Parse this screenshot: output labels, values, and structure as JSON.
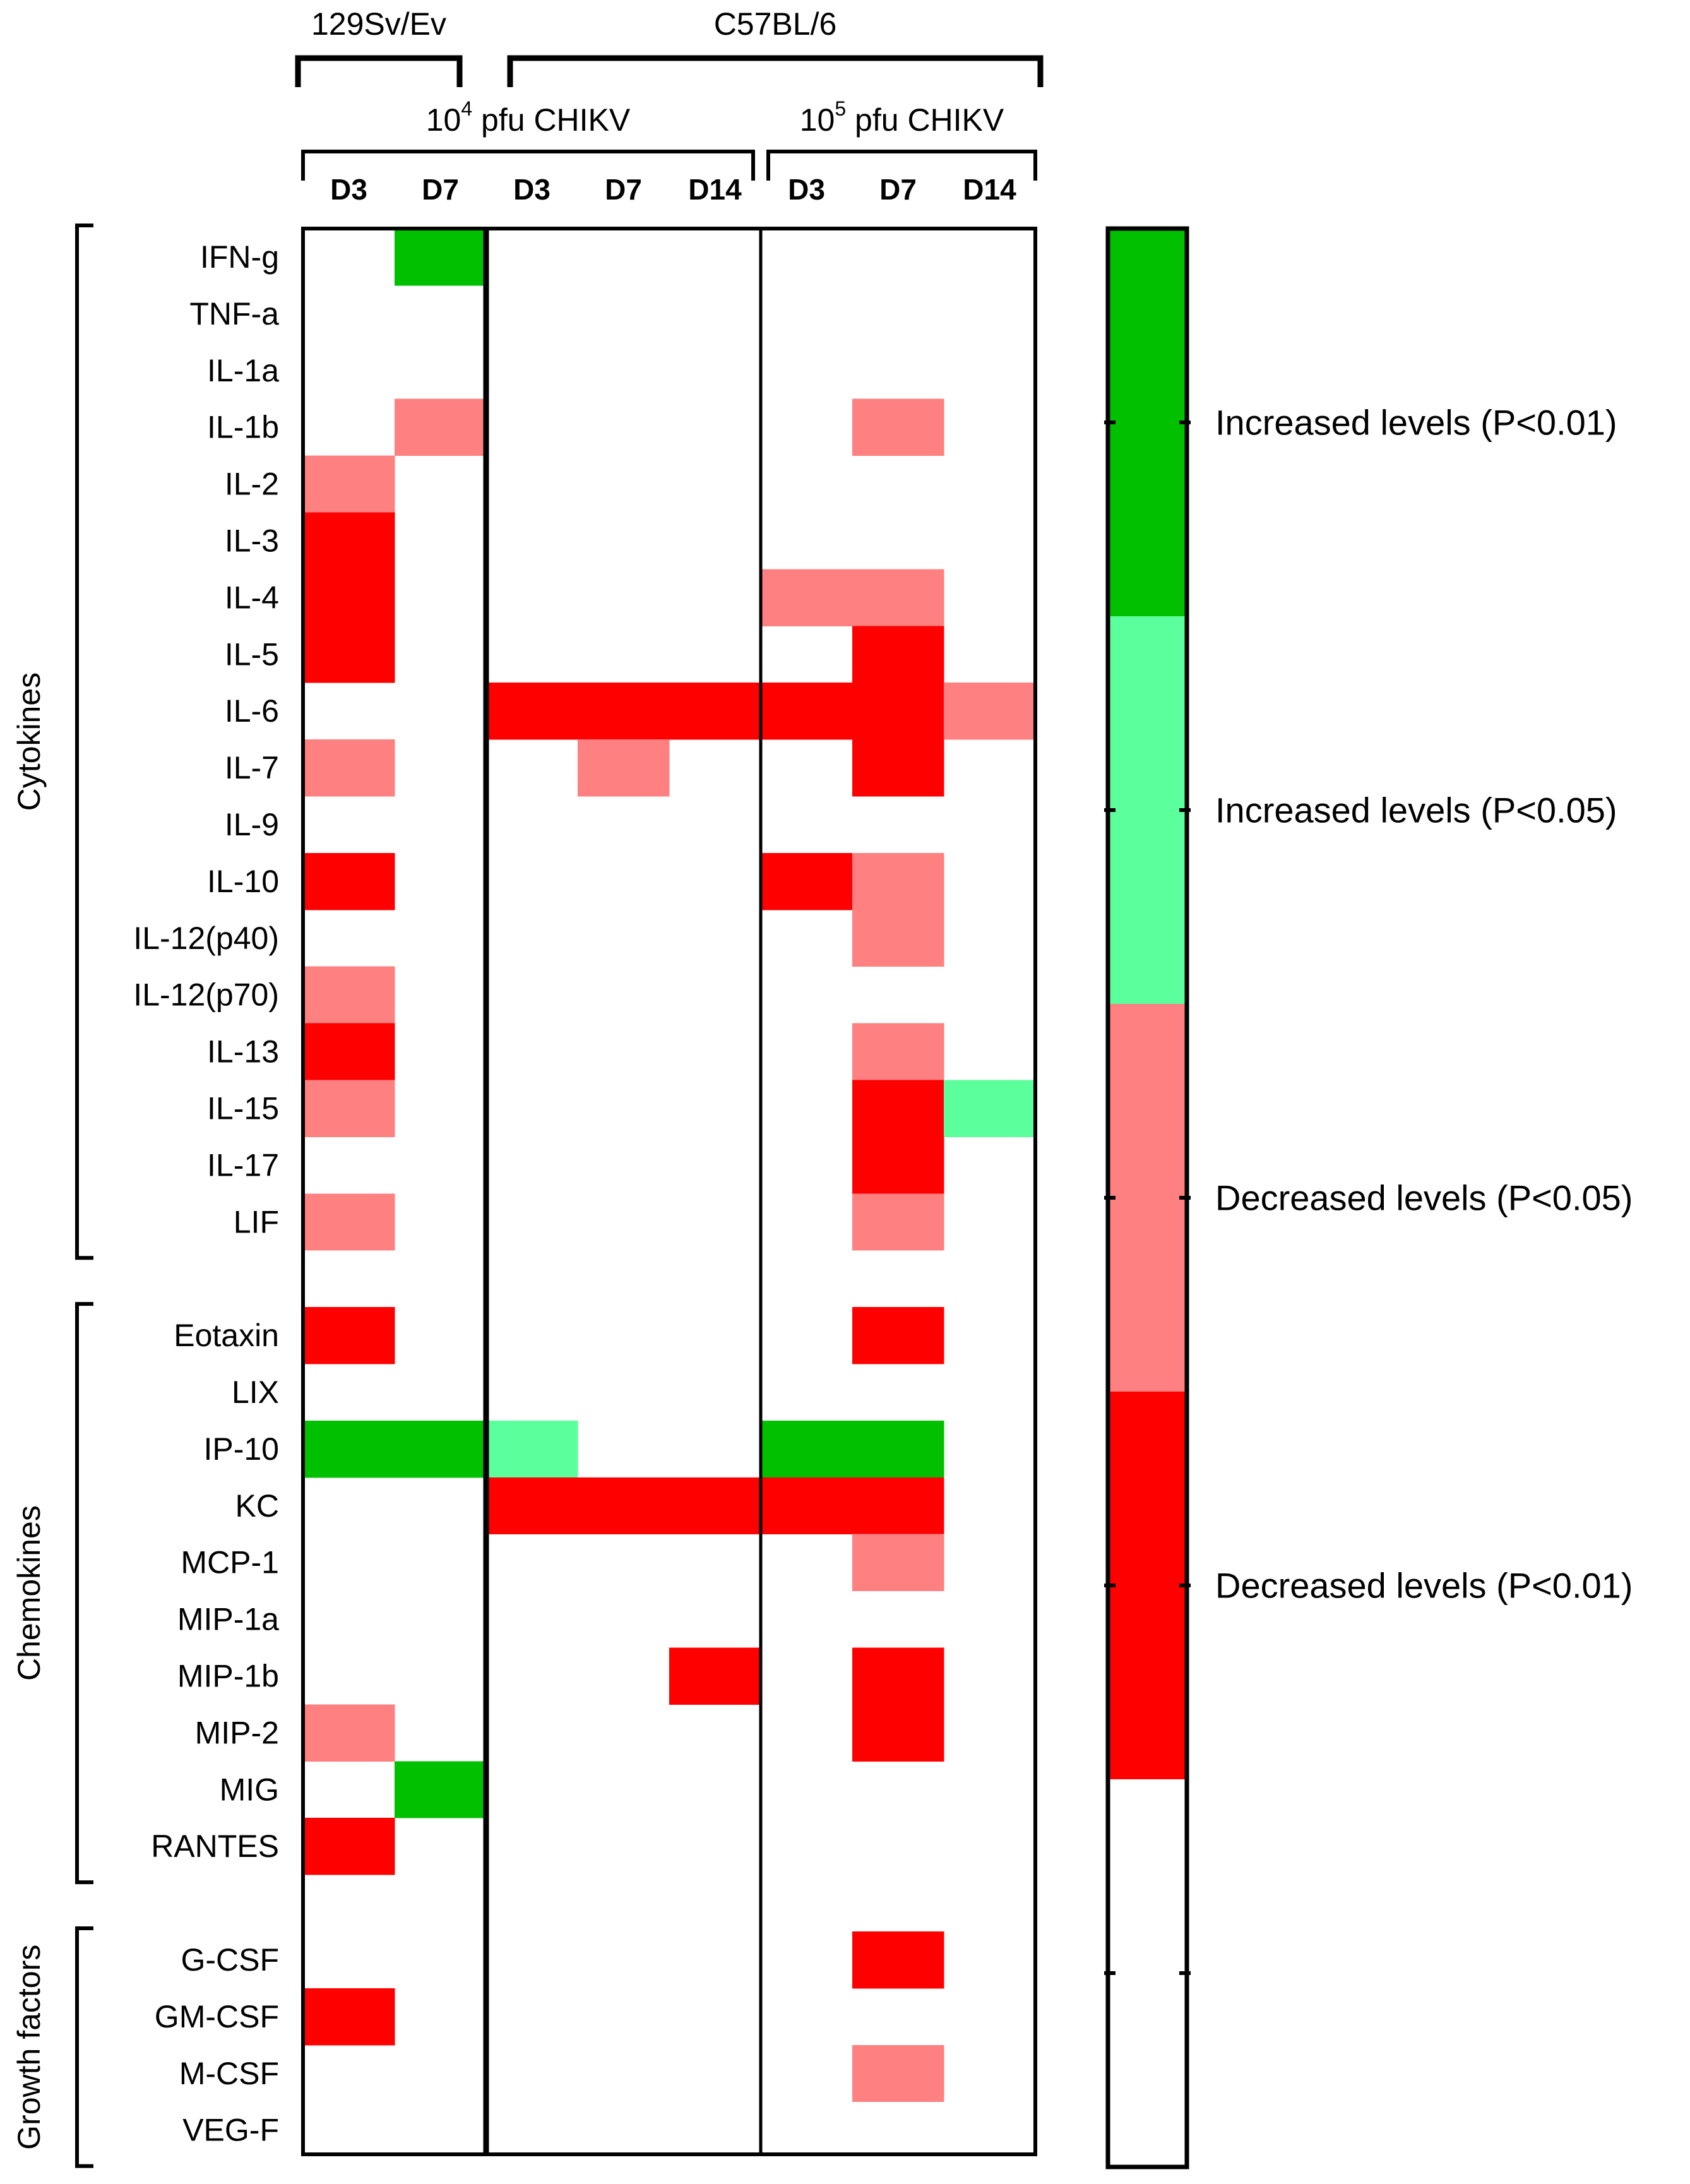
{
  "chart_data": {
    "type": "heatmap",
    "strains": [
      {
        "label": "129Sv/Ev",
        "col_start": 0,
        "col_end": 1
      },
      {
        "label": "C57BL/6",
        "col_start": 2,
        "col_end": 7
      }
    ],
    "doses": [
      {
        "base": "10",
        "exp": "4",
        "rest": " pfu CHIKV",
        "col_start": 0,
        "col_end": 4
      },
      {
        "base": "10",
        "exp": "5",
        "rest": " pfu CHIKV",
        "col_start": 5,
        "col_end": 7
      }
    ],
    "columns": [
      "D3",
      "D7",
      "D3",
      "D7",
      "D14",
      "D3",
      "D7",
      "D14"
    ],
    "groups": [
      {
        "label": "Cytokines",
        "rows": [
          "IFN-g",
          "TNF-a",
          "IL-1a",
          "IL-1b",
          "IL-2",
          "IL-3",
          "IL-4",
          "IL-5",
          "IL-6",
          "IL-7",
          "IL-9",
          "IL-10",
          "IL-12(p40)",
          "IL-12(p70)",
          "IL-13",
          "IL-15",
          "IL-17",
          "LIF"
        ]
      },
      {
        "label": "Chemokines",
        "rows": [
          "Eotaxin",
          "LIX",
          "IP-10",
          "KC",
          "MCP-1",
          "MIP-1a",
          "MIP-1b",
          "MIP-2",
          "MIG",
          "RANTES"
        ]
      },
      {
        "label": "Growth factors",
        "rows": [
          "G-CSF",
          "GM-CSF",
          "M-CSF",
          "VEG-F"
        ]
      }
    ],
    "cell_codes": "Codes: 2 = increased P<0.01, 1 = increased P<0.05, -1 = decreased P<0.05, -2 = decreased P<0.01, 0 = not significant",
    "values": [
      [
        0,
        2,
        0,
        0,
        0,
        0,
        0,
        0
      ],
      [
        0,
        0,
        0,
        0,
        0,
        0,
        0,
        0
      ],
      [
        0,
        0,
        0,
        0,
        0,
        0,
        0,
        0
      ],
      [
        0,
        -1,
        0,
        0,
        0,
        0,
        -1,
        0
      ],
      [
        -1,
        0,
        0,
        0,
        0,
        0,
        0,
        0
      ],
      [
        -2,
        0,
        0,
        0,
        0,
        0,
        0,
        0
      ],
      [
        -2,
        0,
        0,
        0,
        0,
        -1,
        -1,
        0
      ],
      [
        -2,
        0,
        0,
        0,
        0,
        0,
        -2,
        0
      ],
      [
        0,
        0,
        -2,
        -2,
        -2,
        -2,
        -2,
        -1
      ],
      [
        -1,
        0,
        0,
        -1,
        0,
        0,
        -2,
        0
      ],
      [
        0,
        0,
        0,
        0,
        0,
        0,
        0,
        0
      ],
      [
        -2,
        0,
        0,
        0,
        0,
        -2,
        -1,
        0
      ],
      [
        0,
        0,
        0,
        0,
        0,
        0,
        -1,
        0
      ],
      [
        -1,
        0,
        0,
        0,
        0,
        0,
        0,
        0
      ],
      [
        -2,
        0,
        0,
        0,
        0,
        0,
        -1,
        0
      ],
      [
        -1,
        0,
        0,
        0,
        0,
        0,
        -2,
        1
      ],
      [
        0,
        0,
        0,
        0,
        0,
        0,
        -2,
        0
      ],
      [
        -1,
        0,
        0,
        0,
        0,
        0,
        -1,
        0
      ],
      [
        -2,
        0,
        0,
        0,
        0,
        0,
        -2,
        0
      ],
      [
        0,
        0,
        0,
        0,
        0,
        0,
        0,
        0
      ],
      [
        2,
        2,
        1,
        0,
        0,
        2,
        2,
        0
      ],
      [
        0,
        0,
        -2,
        -2,
        -2,
        -2,
        -2,
        0
      ],
      [
        0,
        0,
        0,
        0,
        0,
        0,
        -1,
        0
      ],
      [
        0,
        0,
        0,
        0,
        0,
        0,
        0,
        0
      ],
      [
        0,
        0,
        0,
        0,
        -2,
        0,
        -2,
        0
      ],
      [
        -1,
        0,
        0,
        0,
        0,
        0,
        -2,
        0
      ],
      [
        0,
        2,
        0,
        0,
        0,
        0,
        0,
        0
      ],
      [
        -2,
        0,
        0,
        0,
        0,
        0,
        0,
        0
      ],
      [
        0,
        0,
        0,
        0,
        0,
        0,
        -2,
        0
      ],
      [
        -2,
        0,
        0,
        0,
        0,
        0,
        0,
        0
      ],
      [
        0,
        0,
        0,
        0,
        0,
        0,
        -1,
        0
      ],
      [
        0,
        0,
        0,
        0,
        0,
        0,
        0,
        0
      ]
    ],
    "legend": [
      {
        "code": 2,
        "label": "Increased levels (P<0.01)",
        "color": "#00c000"
      },
      {
        "code": 1,
        "label": "Increased levels (P<0.05)",
        "color": "#5bff9b"
      },
      {
        "code": -1,
        "label": "Decreased levels (P<0.05)",
        "color": "#ff8080"
      },
      {
        "code": -2,
        "label": "Decreased levels (P<0.01)",
        "color": "#ff0000"
      },
      {
        "code": 0,
        "label": "",
        "color": "#ffffff"
      }
    ]
  }
}
